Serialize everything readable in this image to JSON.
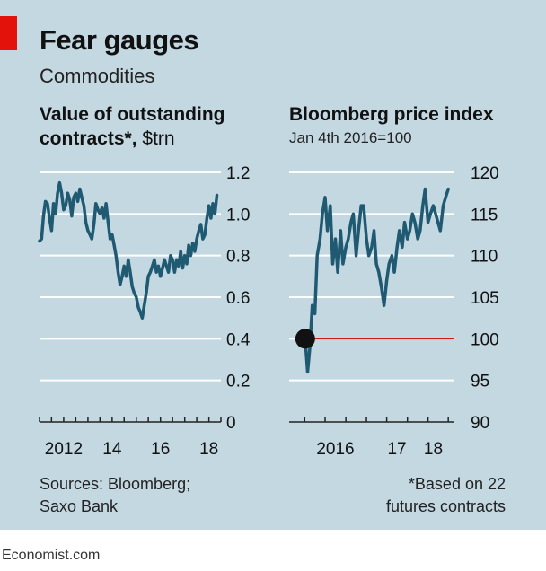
{
  "header": {
    "title": "Fear gauges",
    "subtitle": "Commodities"
  },
  "colors": {
    "background": "#c4d8e2",
    "line": "#1f5a72",
    "baseline_red": "#d11a1a",
    "accent_red": "#e3120b"
  },
  "chart_data": [
    {
      "type": "line",
      "title": "Value of outstanding contracts*,",
      "unit": "$trn",
      "ylim": [
        0,
        1.2
      ],
      "yticks": [
        "1.2",
        "1.0",
        "0.8",
        "0.6",
        "0.4",
        "0.2",
        "0"
      ],
      "xticks": [
        "2012",
        "14",
        "16",
        "18"
      ],
      "grid": true,
      "x": [
        "2011-01",
        "2011-02",
        "2011-03",
        "2011-04",
        "2011-05",
        "2011-06",
        "2011-07",
        "2011-08",
        "2011-09",
        "2011-10",
        "2011-11",
        "2011-12",
        "2012-01",
        "2012-02",
        "2012-03",
        "2012-04",
        "2012-05",
        "2012-06",
        "2012-07",
        "2012-08",
        "2012-09",
        "2012-10",
        "2012-11",
        "2012-12",
        "2013-01",
        "2013-02",
        "2013-03",
        "2013-04",
        "2013-05",
        "2013-06",
        "2013-07",
        "2013-08",
        "2013-09",
        "2013-10",
        "2013-11",
        "2013-12",
        "2014-01",
        "2014-02",
        "2014-03",
        "2014-04",
        "2014-05",
        "2014-06",
        "2014-07",
        "2014-08",
        "2014-09",
        "2014-10",
        "2014-11",
        "2014-12",
        "2015-01",
        "2015-02",
        "2015-03",
        "2015-04",
        "2015-05",
        "2015-06",
        "2015-07",
        "2015-08",
        "2015-09",
        "2015-10",
        "2015-11",
        "2015-12",
        "2016-01",
        "2016-02",
        "2016-03",
        "2016-04",
        "2016-05",
        "2016-06",
        "2016-07",
        "2016-08",
        "2016-09",
        "2016-10",
        "2016-11",
        "2016-12",
        "2017-01",
        "2017-02",
        "2017-03",
        "2017-04",
        "2017-05",
        "2017-06",
        "2017-07",
        "2017-08",
        "2017-09",
        "2017-10",
        "2017-11",
        "2017-12",
        "2018-01",
        "2018-02",
        "2018-03",
        "2018-04",
        "2018-05"
      ],
      "values": [
        0.87,
        0.88,
        0.99,
        1.06,
        1.05,
        0.98,
        0.92,
        1.05,
        1.0,
        1.1,
        1.15,
        1.1,
        1.02,
        1.04,
        1.1,
        1.07,
        0.99,
        1.08,
        1.1,
        1.06,
        1.12,
        1.08,
        1.04,
        0.96,
        0.92,
        0.9,
        0.88,
        0.95,
        1.05,
        1.02,
        1.0,
        1.03,
        0.98,
        1.05,
        0.96,
        0.88,
        0.9,
        0.85,
        0.8,
        0.72,
        0.66,
        0.7,
        0.75,
        0.7,
        0.78,
        0.72,
        0.65,
        0.62,
        0.6,
        0.55,
        0.53,
        0.5,
        0.56,
        0.62,
        0.7,
        0.72,
        0.75,
        0.78,
        0.72,
        0.75,
        0.7,
        0.74,
        0.78,
        0.75,
        0.72,
        0.8,
        0.78,
        0.72,
        0.78,
        0.75,
        0.82,
        0.74,
        0.8,
        0.76,
        0.85,
        0.8,
        0.86,
        0.82,
        0.88,
        0.92,
        0.95,
        0.88,
        0.9,
        0.98,
        1.04,
        0.98,
        1.05,
        1.0,
        1.09
      ]
    },
    {
      "type": "line",
      "title": "Bloomberg price index",
      "subtitle": "Jan 4th 2016=100",
      "ylim": [
        90,
        120
      ],
      "yticks": [
        "120",
        "115",
        "110",
        "105",
        "100",
        "95",
        "90"
      ],
      "xticks": [
        "2016",
        "17",
        "18"
      ],
      "baseline": 100,
      "grid": true,
      "x": [
        "2016-01-04",
        "2016-01-18",
        "2016-02-01",
        "2016-02-15",
        "2016-03-01",
        "2016-03-15",
        "2016-04-01",
        "2016-04-15",
        "2016-05-01",
        "2016-05-15",
        "2016-06-01",
        "2016-06-15",
        "2016-07-01",
        "2016-07-15",
        "2016-08-01",
        "2016-08-15",
        "2016-09-01",
        "2016-09-15",
        "2016-10-01",
        "2016-10-15",
        "2016-11-01",
        "2016-11-15",
        "2016-12-01",
        "2016-12-15",
        "2017-01-01",
        "2017-01-15",
        "2017-02-01",
        "2017-02-15",
        "2017-03-01",
        "2017-03-15",
        "2017-04-01",
        "2017-04-15",
        "2017-05-01",
        "2017-05-15",
        "2017-06-01",
        "2017-06-15",
        "2017-07-01",
        "2017-07-15",
        "2017-08-01",
        "2017-08-15",
        "2017-09-01",
        "2017-09-15",
        "2017-10-01",
        "2017-10-15",
        "2017-11-01",
        "2017-11-15",
        "2017-12-01",
        "2017-12-15",
        "2018-01-01",
        "2018-01-15",
        "2018-02-01",
        "2018-02-15",
        "2018-03-01",
        "2018-03-15",
        "2018-04-01",
        "2018-04-15",
        "2018-05-01"
      ],
      "values": [
        100,
        96,
        99,
        104,
        103,
        110,
        112,
        115,
        117,
        113,
        116,
        109,
        112,
        108,
        113,
        109,
        111,
        112,
        114,
        115,
        110,
        113,
        116,
        116,
        112,
        110,
        111,
        113,
        109,
        108,
        106,
        104,
        107,
        109,
        110,
        108,
        111,
        113,
        111,
        114,
        112,
        113,
        115,
        114,
        112,
        113,
        116,
        118,
        114,
        115,
        116,
        115,
        114,
        113,
        116,
        117,
        118
      ]
    }
  ],
  "footer": {
    "source_line1": "Sources: Bloomberg;",
    "source_line2": "Saxo Bank",
    "footnote_line1": "*Based on 22",
    "footnote_line2": "futures contracts",
    "brand": "Economist.com"
  }
}
